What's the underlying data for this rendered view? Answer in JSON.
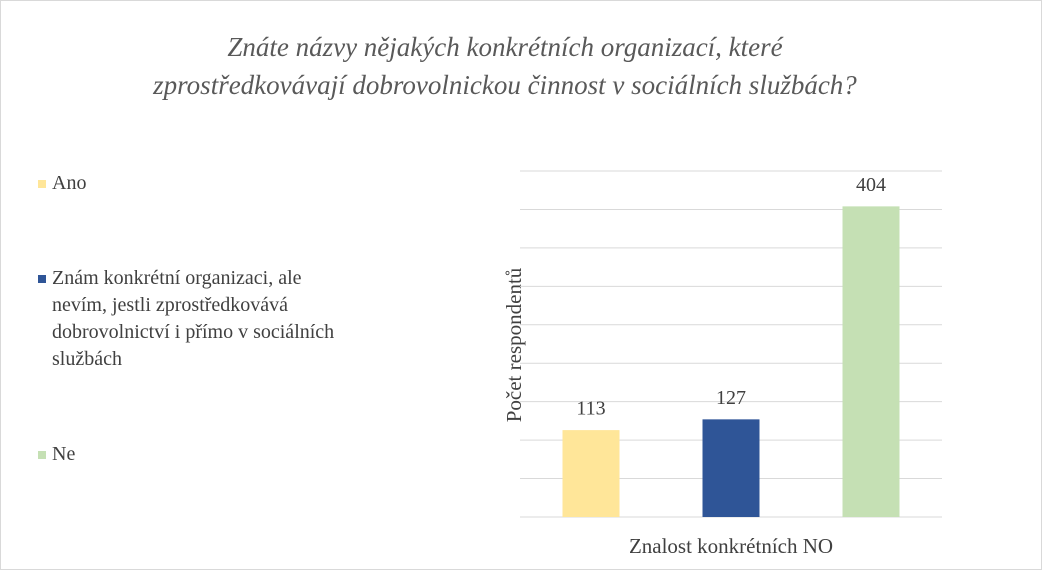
{
  "chart_data": {
    "type": "bar",
    "title": "Znáte názvy nějakých konkrétních organizací, které zprostředkovávají dobrovolnickou činnost v sociálních službách?",
    "categories": [
      "Znalost konkrétních NO"
    ],
    "series": [
      {
        "name": "Ano",
        "color": "#ffe699",
        "values": [
          113
        ]
      },
      {
        "name": "Znám konkrétní organizaci, ale nevím, jestli zprostředkovává dobrovolnictví i přímo v sociálních službách",
        "color": "#2f5597",
        "values": [
          127
        ]
      },
      {
        "name": "Ne",
        "color": "#c5e0b4",
        "values": [
          404
        ]
      }
    ],
    "y_label": "Počet respondentů",
    "ylim": [
      0,
      450
    ],
    "yticks": [
      0,
      50,
      100,
      150,
      200,
      250,
      300,
      350,
      400,
      450
    ],
    "grid": true,
    "legend": "left"
  }
}
